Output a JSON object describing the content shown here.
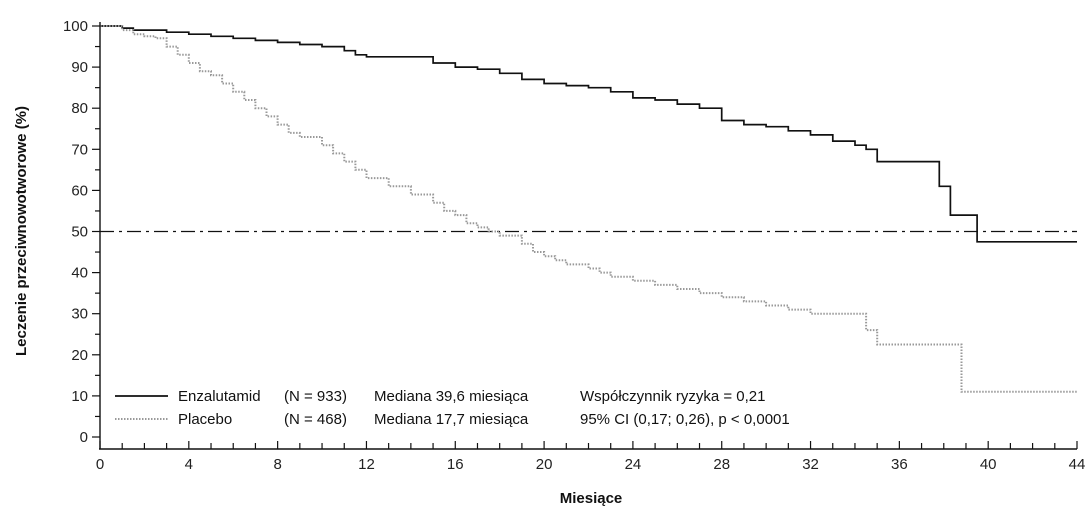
{
  "chart_data": {
    "type": "line",
    "title": "",
    "xlabel": "Miesiące",
    "ylabel": "Leczenie przeciwnowotworowe (%)",
    "xlim": [
      0,
      44
    ],
    "ylim": [
      0,
      100
    ],
    "xticks": [
      0,
      4,
      8,
      12,
      16,
      20,
      24,
      28,
      32,
      36,
      40,
      44
    ],
    "yticks": [
      0,
      10,
      20,
      30,
      40,
      50,
      60,
      70,
      80,
      90,
      100
    ],
    "grid": false,
    "step": true,
    "reference_line": {
      "y": 50,
      "style": "dash-dot"
    },
    "legend": {
      "placement": "bottom-left",
      "rows": [
        {
          "name": "Enzalutamid",
          "n": "(N = 933)",
          "median": "Mediana 39,6 miesiąca",
          "stat": "Współczynnik ryzyka = 0,21"
        },
        {
          "name": "Placebo",
          "n": "(N = 468)",
          "median": "Mediana 17,7 miesiąca",
          "stat": "95% CI (0,17; 0,26), p < 0,0001"
        }
      ]
    },
    "series": [
      {
        "name": "Enzalutamid",
        "color": "#111111",
        "style": "solid",
        "x": [
          0,
          1,
          1.5,
          3,
          4,
          5,
          6,
          7,
          8,
          9,
          10,
          11,
          11.5,
          12,
          15,
          16,
          17,
          18,
          19,
          20,
          21,
          22,
          23,
          24,
          25,
          26,
          27,
          28,
          29,
          30,
          31,
          32,
          33,
          34,
          34.5,
          35,
          37,
          37.8,
          38.3,
          38.8,
          39.5,
          44
        ],
        "y": [
          100,
          99.5,
          99,
          98.5,
          98,
          97.5,
          97,
          96.5,
          96,
          95.5,
          95,
          94,
          93,
          92.5,
          91,
          90,
          89.5,
          88.5,
          87,
          86,
          85.5,
          85,
          84,
          82.5,
          82,
          81,
          80,
          77,
          76,
          75.5,
          74.5,
          73.5,
          72,
          71,
          70,
          67,
          67,
          61,
          54,
          54,
          47.5,
          47.5
        ]
      },
      {
        "name": "Placebo",
        "color": "#999999",
        "style": "dotted",
        "x": [
          0,
          1,
          1.5,
          2,
          2.5,
          3,
          3.5,
          4,
          4.5,
          5,
          5.5,
          6,
          6.5,
          7,
          7.5,
          8,
          8.5,
          9,
          10,
          10.5,
          11,
          11.5,
          12,
          13,
          14,
          15,
          15.5,
          16,
          16.5,
          17,
          17.5,
          18,
          19,
          19.5,
          20,
          20.5,
          21,
          22,
          22.5,
          23,
          24,
          25,
          26,
          27,
          28,
          29,
          30,
          31,
          32,
          33,
          34,
          34.5,
          35,
          38.8,
          44
        ],
        "y": [
          100,
          99,
          98,
          97.5,
          97,
          95,
          93,
          91,
          89,
          88,
          86,
          84,
          82,
          80,
          78,
          76,
          74,
          73,
          71,
          69,
          67,
          65,
          63,
          61,
          59,
          57,
          55,
          54,
          52,
          51,
          50,
          49,
          47,
          45,
          44,
          43,
          42,
          41,
          40,
          39,
          38,
          37,
          36,
          35,
          34,
          33,
          32,
          31,
          30,
          30,
          30,
          26,
          22.5,
          11,
          11
        ]
      }
    ]
  }
}
